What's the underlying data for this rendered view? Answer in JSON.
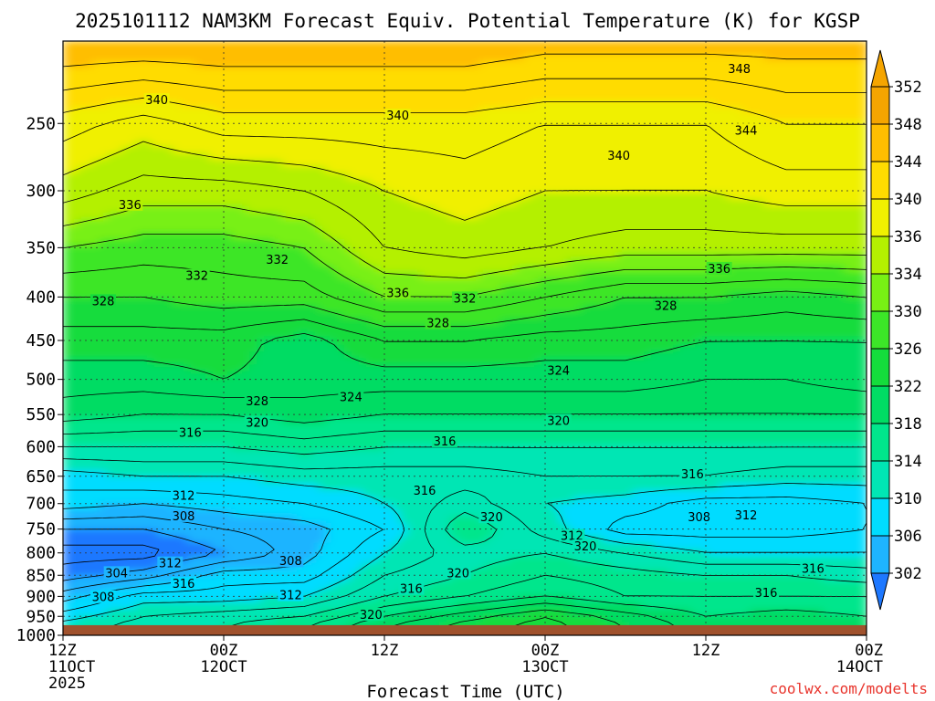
{
  "chart_data": {
    "type": "heatmap",
    "title": "2025101112 NAM3KM Forecast Equiv. Potential Temperature (K) for KGSP",
    "xlabel": "Forecast Time (UTC)",
    "ylabel": "",
    "credit": "coolwx.com/modelts",
    "x_ticks": [
      {
        "hours": 0,
        "label1": "12Z",
        "label2": "11OCT",
        "label3": "2025"
      },
      {
        "hours": 12,
        "label1": "00Z",
        "label2": "12OCT",
        "label3": ""
      },
      {
        "hours": 24,
        "label1": "12Z",
        "label2": "",
        "label3": ""
      },
      {
        "hours": 36,
        "label1": "00Z",
        "label2": "13OCT",
        "label3": ""
      },
      {
        "hours": 48,
        "label1": "12Z",
        "label2": "",
        "label3": ""
      },
      {
        "hours": 60,
        "label1": "00Z",
        "label2": "14OCT",
        "label3": ""
      }
    ],
    "xlim": [
      0,
      60
    ],
    "y_ticks": [
      250,
      300,
      350,
      400,
      450,
      500,
      550,
      600,
      650,
      700,
      750,
      800,
      850,
      900,
      950,
      1000
    ],
    "ylim": [
      200,
      1000
    ],
    "y_scale": "log-pressure, inverted",
    "grid": true,
    "ground_pressure": 973,
    "colorbar": {
      "ticks": [
        302,
        306,
        310,
        314,
        318,
        322,
        326,
        330,
        334,
        336,
        340,
        344,
        348,
        352
      ],
      "colors": [
        "#1e78ff",
        "#1eb4ff",
        "#00dcff",
        "#00e6b4",
        "#00e68c",
        "#00dc64",
        "#14dc3c",
        "#3ce628",
        "#78f014",
        "#b4f000",
        "#f0f000",
        "#ffdc00",
        "#ffbe00",
        "#f5a500"
      ]
    },
    "ground_color": "#a0522d",
    "profile_levels": [
      200,
      250,
      300,
      350,
      400,
      450,
      500,
      550,
      600,
      650,
      700,
      750,
      800,
      850,
      900,
      950,
      975
    ],
    "profile_hours": [
      0,
      6,
      12,
      18,
      24,
      30,
      36,
      42,
      48,
      54,
      60
    ],
    "theta_e": [
      [
        350,
        350,
        350,
        350,
        350,
        350,
        349,
        349,
        349,
        349,
        349
      ],
      [
        343,
        341,
        343,
        343,
        343,
        343,
        342,
        342,
        342,
        344,
        344
      ],
      [
        339,
        337,
        337,
        338,
        340,
        341,
        340,
        340,
        340,
        341,
        341
      ],
      [
        334,
        333,
        333,
        334,
        338,
        339,
        338,
        337,
        337,
        337,
        337
      ],
      [
        330,
        330,
        331,
        331,
        334,
        334,
        332,
        330,
        330,
        329,
        330
      ],
      [
        327,
        327,
        327,
        325,
        328,
        328,
        327,
        327,
        326,
        326,
        326
      ],
      [
        325,
        325,
        326,
        325,
        325,
        325,
        325,
        325,
        324,
        324,
        325
      ],
      [
        323,
        322,
        322,
        323,
        322,
        322,
        322,
        322,
        322,
        322,
        322
      ],
      [
        318,
        318,
        318,
        319,
        318,
        318,
        318,
        318,
        318,
        318,
        318
      ],
      [
        313,
        314,
        314,
        315,
        315,
        315,
        316,
        316,
        316,
        315,
        315
      ],
      [
        311,
        310,
        311,
        312,
        314,
        317,
        314,
        313,
        311,
        311,
        312
      ],
      [
        306,
        306,
        308,
        309,
        312,
        320,
        315,
        311,
        311,
        311,
        312
      ],
      [
        303,
        303,
        306,
        309,
        314,
        317,
        318,
        316,
        314,
        314,
        314
      ],
      [
        305,
        307,
        311,
        311,
        316,
        318,
        320,
        319,
        318,
        318,
        317
      ],
      [
        309,
        313,
        313,
        314,
        318,
        320,
        322,
        320,
        320,
        320,
        320
      ],
      [
        313,
        316,
        317,
        318,
        322,
        325,
        328,
        325,
        322,
        323,
        322
      ],
      [
        315,
        317,
        318,
        320,
        324,
        327,
        329,
        326,
        323,
        324,
        323
      ]
    ],
    "contour_labels": [
      {
        "hours": 50.5,
        "p": 216,
        "text": "348"
      },
      {
        "hours": 7.0,
        "p": 235,
        "text": "340"
      },
      {
        "hours": 25.0,
        "p": 245,
        "text": "340"
      },
      {
        "hours": 51.0,
        "p": 255,
        "text": "344"
      },
      {
        "hours": 41.5,
        "p": 273,
        "text": "340"
      },
      {
        "hours": 5.0,
        "p": 312,
        "text": "336"
      },
      {
        "hours": 16.0,
        "p": 362,
        "text": "332"
      },
      {
        "hours": 10.0,
        "p": 378,
        "text": "332"
      },
      {
        "hours": 49.0,
        "p": 371,
        "text": "336"
      },
      {
        "hours": 25.0,
        "p": 396,
        "text": "336"
      },
      {
        "hours": 30.0,
        "p": 402,
        "text": "332"
      },
      {
        "hours": 3.0,
        "p": 405,
        "text": "328"
      },
      {
        "hours": 45.0,
        "p": 410,
        "text": "328"
      },
      {
        "hours": 28.0,
        "p": 430,
        "text": "328"
      },
      {
        "hours": 37.0,
        "p": 489,
        "text": "324"
      },
      {
        "hours": 14.5,
        "p": 531,
        "text": "328"
      },
      {
        "hours": 21.5,
        "p": 525,
        "text": "324"
      },
      {
        "hours": 14.5,
        "p": 563,
        "text": "320"
      },
      {
        "hours": 37.0,
        "p": 560,
        "text": "320"
      },
      {
        "hours": 9.5,
        "p": 578,
        "text": "316"
      },
      {
        "hours": 28.5,
        "p": 592,
        "text": "316"
      },
      {
        "hours": 47.0,
        "p": 647,
        "text": "316"
      },
      {
        "hours": 9.0,
        "p": 686,
        "text": "312"
      },
      {
        "hours": 27.0,
        "p": 677,
        "text": "316"
      },
      {
        "hours": 9.0,
        "p": 725,
        "text": "308"
      },
      {
        "hours": 32.0,
        "p": 727,
        "text": "320"
      },
      {
        "hours": 47.5,
        "p": 727,
        "text": "308"
      },
      {
        "hours": 51.0,
        "p": 723,
        "text": "312"
      },
      {
        "hours": 38.0,
        "p": 765,
        "text": "312"
      },
      {
        "hours": 39.0,
        "p": 787,
        "text": "320"
      },
      {
        "hours": 8.0,
        "p": 824,
        "text": "312"
      },
      {
        "hours": 17.0,
        "p": 819,
        "text": "308"
      },
      {
        "hours": 4.0,
        "p": 846,
        "text": "304"
      },
      {
        "hours": 29.5,
        "p": 846,
        "text": "320"
      },
      {
        "hours": 56.0,
        "p": 836,
        "text": "316"
      },
      {
        "hours": 9.0,
        "p": 871,
        "text": "316"
      },
      {
        "hours": 26.0,
        "p": 883,
        "text": "316"
      },
      {
        "hours": 52.5,
        "p": 892,
        "text": "316"
      },
      {
        "hours": 3.0,
        "p": 903,
        "text": "308"
      },
      {
        "hours": 17.0,
        "p": 898,
        "text": "312"
      },
      {
        "hours": 23.0,
        "p": 947,
        "text": "320"
      }
    ]
  }
}
